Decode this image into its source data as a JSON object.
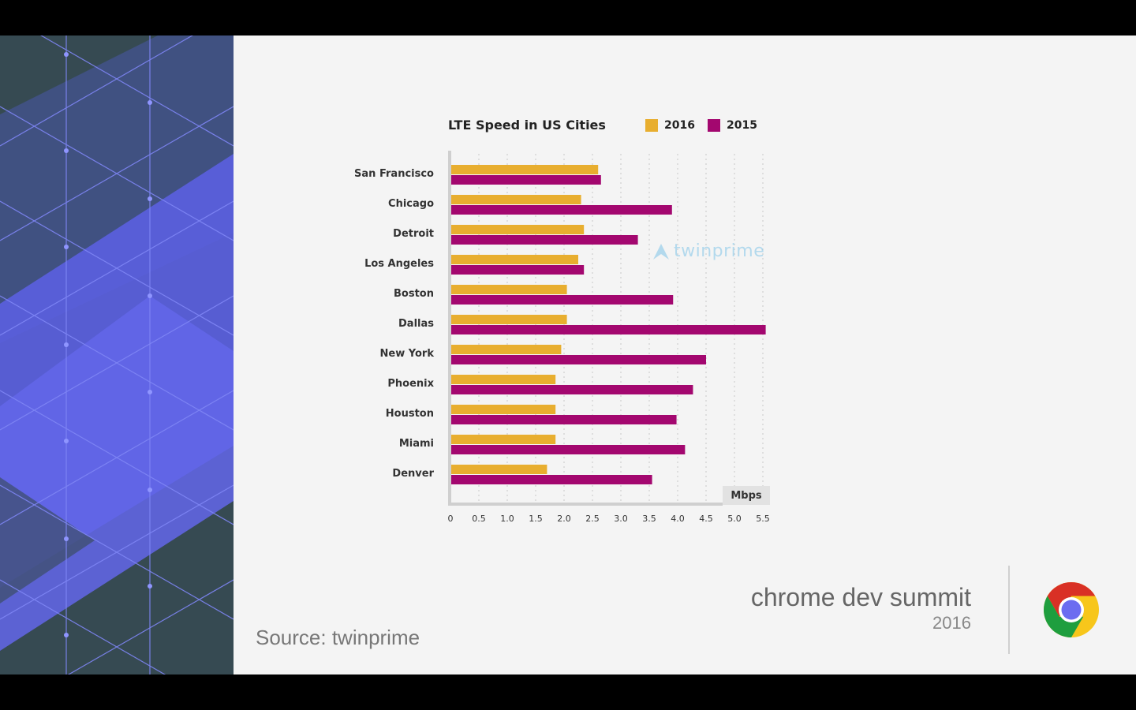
{
  "chart_data": {
    "type": "bar",
    "orientation": "horizontal",
    "title": "LTE Speed in US Cities",
    "unit_label": "Mbps",
    "categories": [
      "San Francisco",
      "Chicago",
      "Detroit",
      "Los Angeles",
      "Boston",
      "Dallas",
      "New York",
      "Phoenix",
      "Houston",
      "Miami",
      "Denver"
    ],
    "series": [
      {
        "name": "2016",
        "color": "#e8ae2f",
        "values": [
          2.6,
          2.3,
          2.35,
          2.25,
          2.05,
          2.05,
          1.95,
          1.85,
          1.85,
          1.85,
          1.7
        ]
      },
      {
        "name": "2015",
        "color": "#a3076f",
        "values": [
          2.65,
          3.9,
          3.3,
          2.35,
          3.92,
          5.55,
          4.5,
          4.27,
          3.98,
          4.13,
          3.55
        ]
      }
    ],
    "xlim": [
      0,
      5.6
    ],
    "x_ticks": [
      "0",
      "0.5",
      "1.0",
      "1.5",
      "2.0",
      "2.5",
      "3.0",
      "3.5",
      "4.0",
      "4.5",
      "5.0",
      "5.5"
    ],
    "legend": "top-right",
    "grid": true
  },
  "watermark": {
    "text": "twinprime"
  },
  "footer": {
    "source": "Source: twinprime",
    "event_title": "chrome dev summit",
    "event_year": "2016"
  },
  "colors": {
    "accent_2016": "#e8ae2f",
    "accent_2015": "#a3076f",
    "sidebar_dark": "#364a52",
    "sidebar_purple": "#5b5fe0"
  },
  "icons": {
    "logo": "chrome-logo-icon",
    "watermark": "twinprime-logo-icon"
  }
}
